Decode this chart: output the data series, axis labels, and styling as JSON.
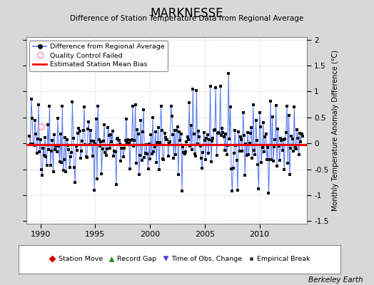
{
  "title": "MARKNESSE",
  "subtitle": "Difference of Station Temperature Data from Regional Average",
  "ylabel": "Monthly Temperature Anomaly Difference (°C)",
  "xlabel_years": [
    1990,
    1995,
    2000,
    2005,
    2010
  ],
  "ylim": [
    -1.55,
    2.05
  ],
  "yticks": [
    -1.5,
    -1.0,
    -0.5,
    0.0,
    0.5,
    1.0,
    1.5,
    2.0
  ],
  "xlim": [
    1988.7,
    2014.3
  ],
  "bias_value": -0.03,
  "background_color": "#d8d8d8",
  "plot_bg_color": "#ffffff",
  "line_color": "#5577ee",
  "dot_color": "#111111",
  "bias_color": "#ee0000",
  "qc_color": "#ff88bb",
  "berkeley_earth_text": "Berkeley Earth",
  "seed": 42,
  "n_points": 300,
  "start_year": 1989.0
}
